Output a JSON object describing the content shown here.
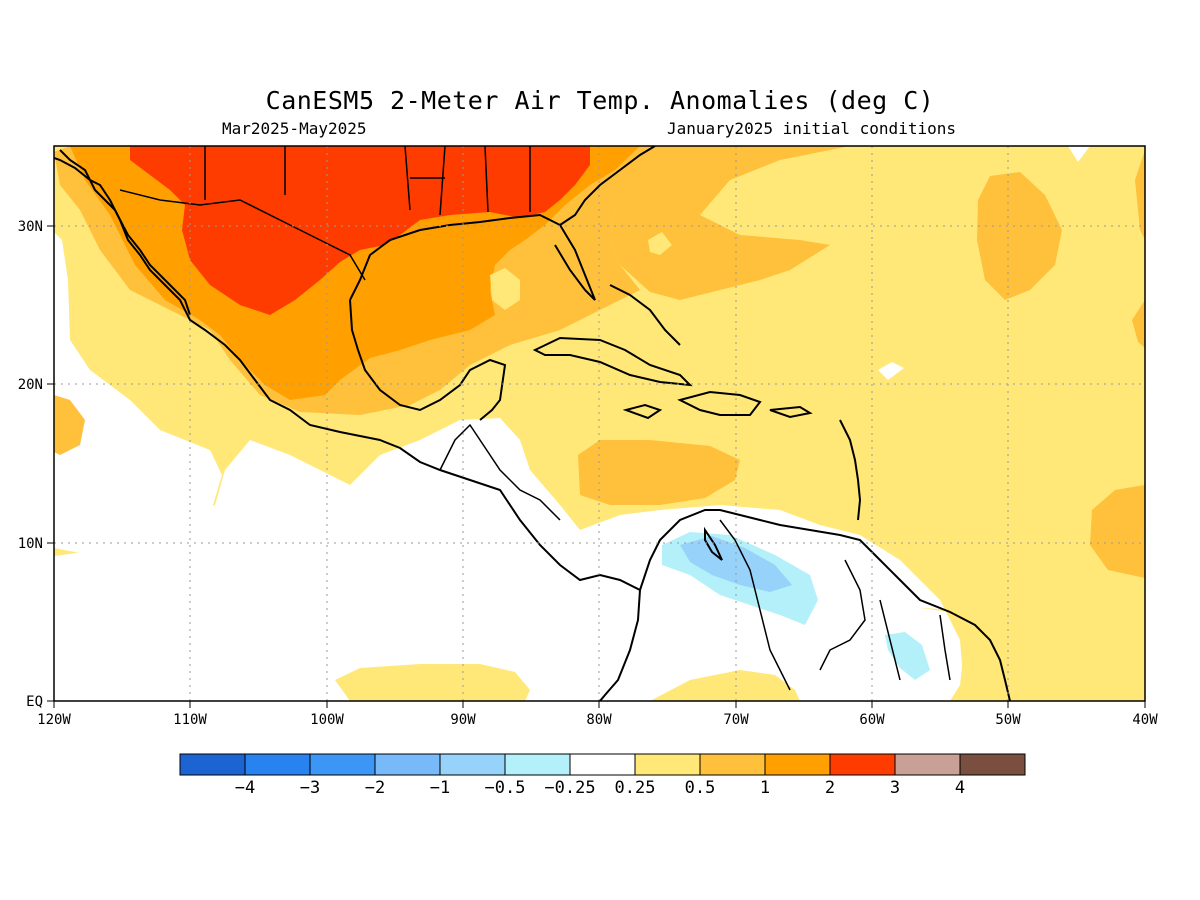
{
  "title": "CanESM5 2-Meter Air Temp. Anomalies (deg C)",
  "subtitle_left": "Mar2025-May2025",
  "subtitle_right": "January2025 initial conditions",
  "lat_labels": [
    "30N",
    "20N",
    "10N",
    "EQ"
  ],
  "lon_labels": [
    "120W",
    "110W",
    "100W",
    "90W",
    "80W",
    "70W",
    "60W",
    "50W",
    "40W"
  ],
  "colorbar": {
    "colors": [
      "#1c64d2",
      "#2882f0",
      "#3c96f5",
      "#78b9fa",
      "#96d2fa",
      "#b4f0fa",
      "#ffffff",
      "#ffe878",
      "#ffc03c",
      "#ffa000",
      "#ff3c00",
      "#c8a096",
      "#7a4f40"
    ],
    "labels": [
      "-4",
      "-3",
      "-2",
      "-1",
      "-0.5",
      "-0.25",
      "0.25",
      "0.5",
      "1",
      "2",
      "3",
      "4"
    ]
  },
  "colors": {
    "white": "#ffffff",
    "light_yellow": "#ffe878",
    "light_orange": "#ffc03c",
    "orange": "#ffa000",
    "red": "#ff3c00",
    "light_blue": "#b4f0fa",
    "mid_blue": "#96d2fa"
  }
}
